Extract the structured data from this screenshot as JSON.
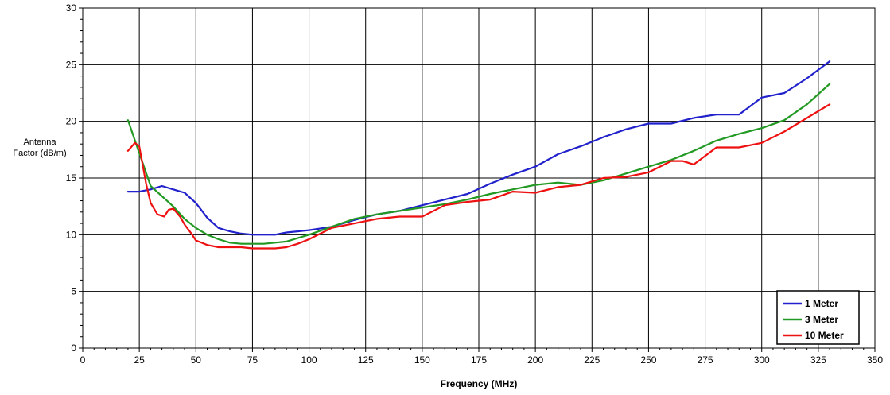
{
  "chart_data": {
    "type": "line",
    "title": "",
    "xlabel": "Frequency (MHz)",
    "ylabel_lines": [
      "Antenna",
      "Factor (dB/m)"
    ],
    "xlim": [
      0,
      350
    ],
    "ylim": [
      0,
      30
    ],
    "xticks": [
      "0",
      "25",
      "50",
      "75",
      "100",
      "125",
      "150",
      "175",
      "200",
      "225",
      "250",
      "275",
      "300",
      "325",
      "350"
    ],
    "yticks": [
      "0",
      "5",
      "10",
      "15",
      "20",
      "25",
      "30"
    ],
    "grid": true,
    "legend_position": "bottom-right",
    "series": [
      {
        "name": "1 Meter",
        "color": "#2222cc",
        "x": [
          20,
          25,
          30,
          35,
          40,
          45,
          50,
          55,
          60,
          65,
          70,
          75,
          80,
          85,
          90,
          95,
          100,
          110,
          120,
          130,
          140,
          150,
          160,
          170,
          180,
          190,
          200,
          210,
          220,
          230,
          240,
          250,
          260,
          270,
          280,
          290,
          300,
          310,
          320,
          330
        ],
        "y": [
          13.8,
          13.8,
          14.0,
          14.3,
          14.0,
          13.7,
          12.8,
          11.5,
          10.6,
          10.3,
          10.1,
          10.0,
          10.0,
          10.0,
          10.2,
          10.3,
          10.4,
          10.7,
          11.3,
          11.8,
          12.1,
          12.6,
          13.1,
          13.6,
          14.5,
          15.3,
          16.0,
          17.1,
          17.8,
          18.6,
          19.3,
          19.8,
          19.8,
          20.3,
          20.6,
          20.6,
          22.1,
          22.5,
          23.8,
          25.3
        ]
      },
      {
        "name": "3 Meter",
        "color": "#229922",
        "x": [
          20,
          25,
          30,
          35,
          40,
          45,
          50,
          55,
          60,
          65,
          70,
          75,
          80,
          85,
          90,
          95,
          100,
          110,
          120,
          130,
          140,
          150,
          160,
          170,
          180,
          190,
          200,
          210,
          220,
          230,
          240,
          250,
          260,
          270,
          280,
          290,
          300,
          310,
          320,
          330
        ],
        "y": [
          20.1,
          17.2,
          14.3,
          13.4,
          12.5,
          11.4,
          10.6,
          10.0,
          9.6,
          9.3,
          9.2,
          9.2,
          9.2,
          9.3,
          9.4,
          9.7,
          10.0,
          10.7,
          11.4,
          11.8,
          12.1,
          12.4,
          12.7,
          13.1,
          13.6,
          14.0,
          14.4,
          14.6,
          14.4,
          14.8,
          15.4,
          16.0,
          16.6,
          17.4,
          18.3,
          18.9,
          19.4,
          20.1,
          21.5,
          23.3
        ]
      },
      {
        "name": "10 Meter",
        "color": "#ee1111",
        "x": [
          20,
          23,
          25,
          28,
          30,
          33,
          36,
          38,
          40,
          43,
          45,
          48,
          50,
          55,
          60,
          65,
          70,
          75,
          80,
          85,
          90,
          95,
          100,
          110,
          120,
          130,
          140,
          150,
          160,
          170,
          180,
          190,
          200,
          210,
          220,
          230,
          240,
          250,
          260,
          265,
          270,
          280,
          290,
          300,
          310,
          320,
          330
        ],
        "y": [
          17.4,
          18.1,
          17.8,
          14.5,
          12.8,
          11.8,
          11.6,
          12.2,
          12.3,
          11.6,
          10.9,
          10.1,
          9.5,
          9.1,
          8.9,
          8.9,
          8.9,
          8.8,
          8.8,
          8.8,
          8.9,
          9.2,
          9.6,
          10.6,
          11.0,
          11.4,
          11.6,
          11.6,
          12.6,
          12.9,
          13.1,
          13.8,
          13.7,
          14.2,
          14.4,
          15.0,
          15.1,
          15.5,
          16.5,
          16.5,
          16.2,
          17.7,
          17.7,
          18.1,
          19.1,
          20.3,
          21.5
        ]
      }
    ]
  }
}
